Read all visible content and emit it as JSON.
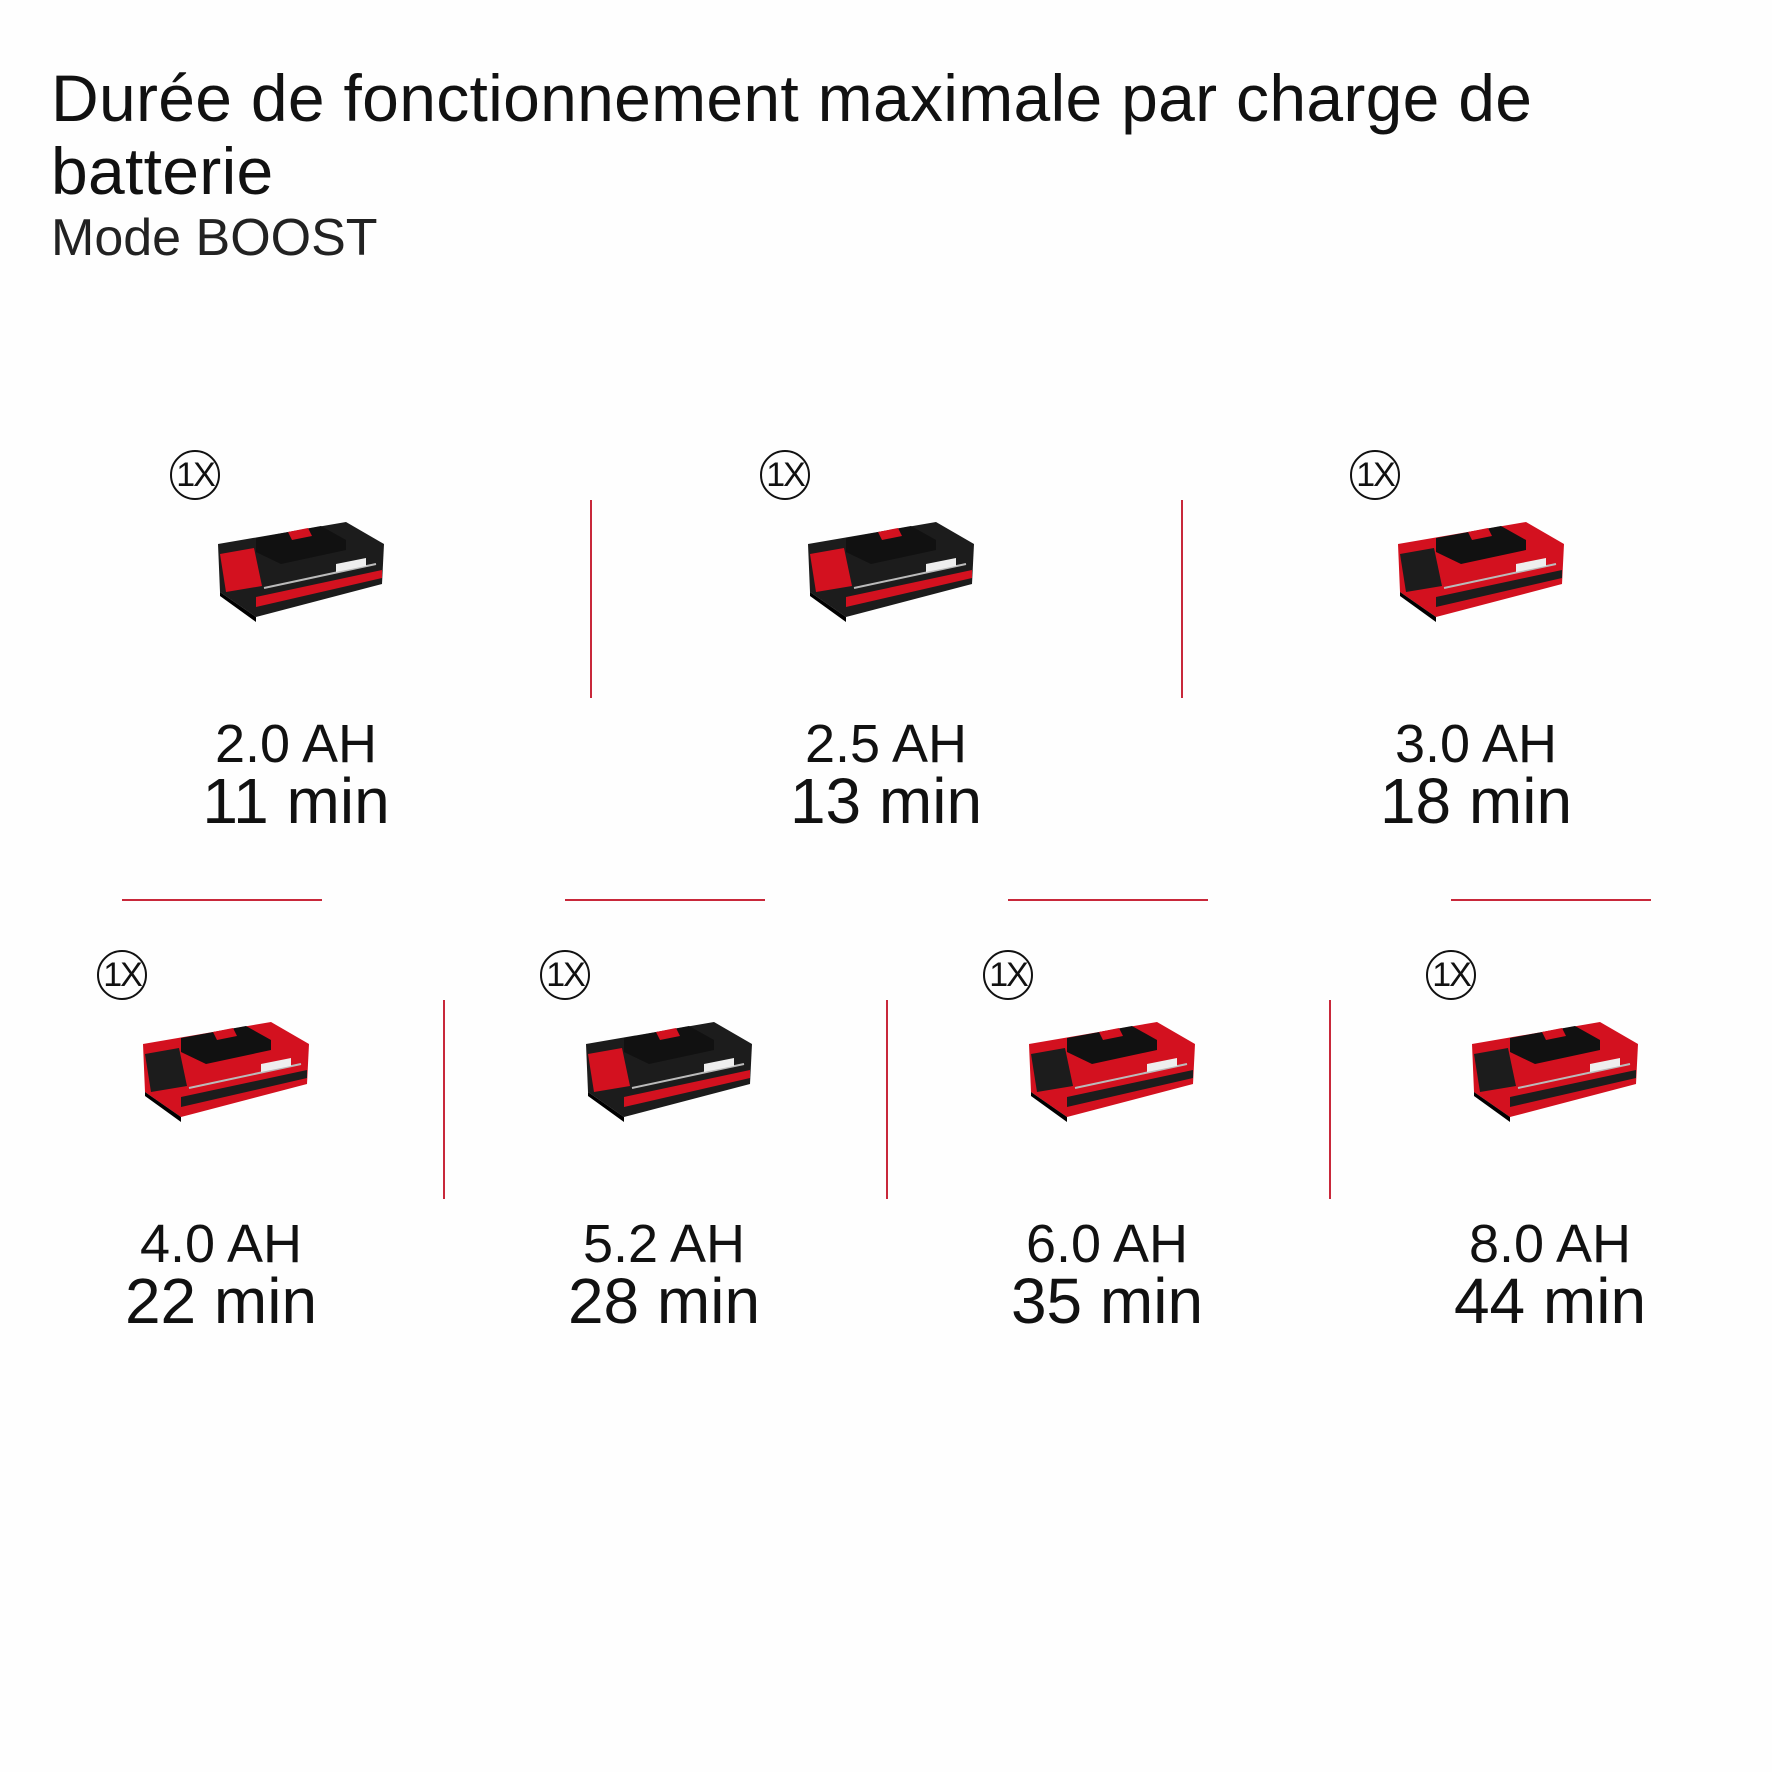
{
  "header": {
    "title": "Durée de fonctionnement maximale par charge de batterie",
    "subtitle": "Mode BOOST"
  },
  "colors": {
    "accent": "#c8283a",
    "battery_red": "#d3111f",
    "battery_black": "#1c1c1c"
  },
  "batteries": [
    {
      "quantity": "1X",
      "capacity": "2.0 AH",
      "runtime": "11 min",
      "body": "black"
    },
    {
      "quantity": "1X",
      "capacity": "2.5 AH",
      "runtime": "13 min",
      "body": "black"
    },
    {
      "quantity": "1X",
      "capacity": "3.0 AH",
      "runtime": "18 min",
      "body": "red"
    },
    {
      "quantity": "1X",
      "capacity": "4.0 AH",
      "runtime": "22 min",
      "body": "red"
    },
    {
      "quantity": "1X",
      "capacity": "5.2 AH",
      "runtime": "28 min",
      "body": "black"
    },
    {
      "quantity": "1X",
      "capacity": "6.0 AH",
      "runtime": "35 min",
      "body": "red"
    },
    {
      "quantity": "1X",
      "capacity": "8.0 AH",
      "runtime": "44 min",
      "body": "red"
    }
  ]
}
